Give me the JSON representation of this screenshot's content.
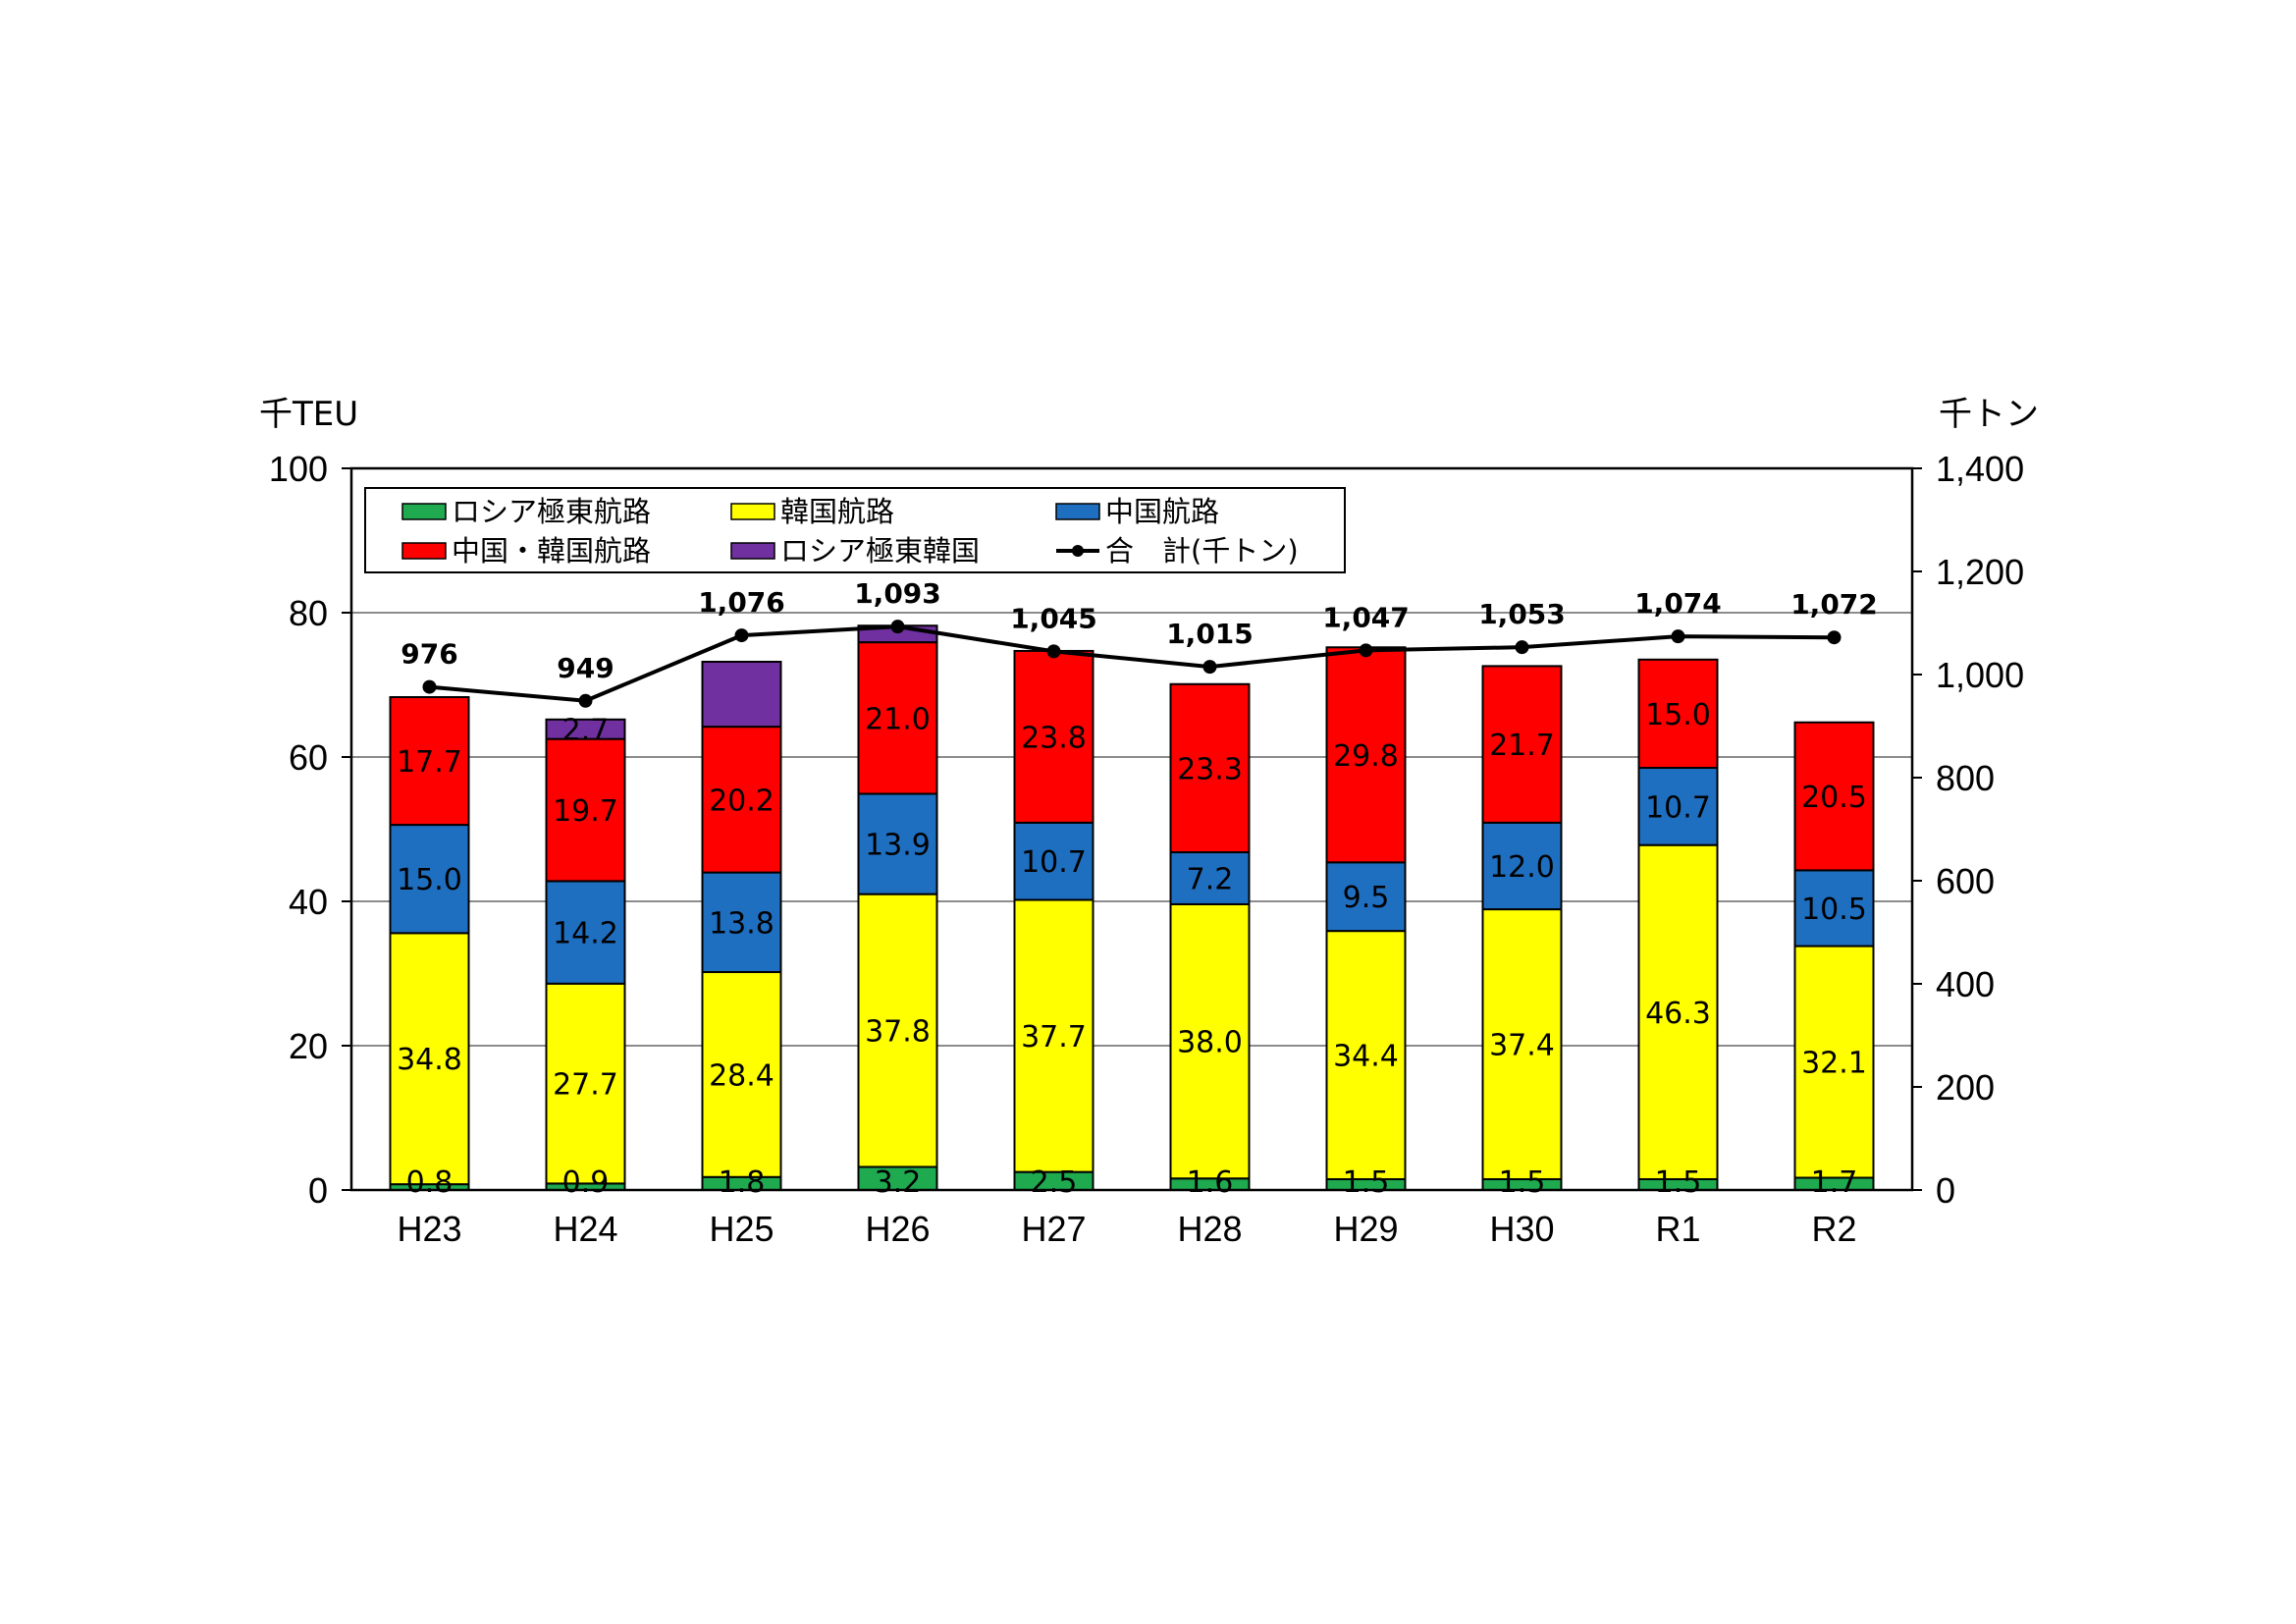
{
  "chart_data": {
    "type": "bar",
    "stacked": true,
    "categories": [
      "H23",
      "H24",
      "H25",
      "H26",
      "H27",
      "H28",
      "H29",
      "H30",
      "R1",
      "R2"
    ],
    "y_unit_left": "千TEU",
    "y_unit_right": "千トン",
    "ylim_left": [
      0,
      100
    ],
    "ylim_right": [
      0,
      1400
    ],
    "yticks_left": [
      "0",
      "20",
      "40",
      "60",
      "80",
      "100"
    ],
    "yticks_right": [
      "0",
      "200",
      "400",
      "600",
      "800",
      "1,000",
      "1,200",
      "1,400"
    ],
    "grid": true,
    "legend_position": "top-left inside",
    "series": [
      {
        "name": "ロシア極東航路",
        "color": "#1faa50",
        "values": [
          0.8,
          0.9,
          1.8,
          3.2,
          2.5,
          1.6,
          1.5,
          1.5,
          1.5,
          1.7
        ],
        "labels": [
          "0.8",
          "0.9",
          "1.8",
          "3.2",
          "2.5",
          "1.6",
          "1.5",
          "1.5",
          "1.5",
          "1.7"
        ]
      },
      {
        "name": "韓国航路",
        "color": "#ffff00",
        "values": [
          34.8,
          27.7,
          28.4,
          37.8,
          37.7,
          38.0,
          34.4,
          37.4,
          46.3,
          32.1
        ],
        "labels": [
          "34.8",
          "27.7",
          "28.4",
          "37.8",
          "37.7",
          "38.0",
          "34.4",
          "37.4",
          "46.3",
          "32.1"
        ]
      },
      {
        "name": "中国航路",
        "color": "#1f6fc1",
        "values": [
          15.0,
          14.2,
          13.8,
          13.9,
          10.7,
          7.2,
          9.5,
          12.0,
          10.7,
          10.5
        ],
        "labels": [
          "15.0",
          "14.2",
          "13.8",
          "13.9",
          "10.7",
          "7.2",
          "9.5",
          "12.0",
          "10.7",
          "10.5"
        ]
      },
      {
        "name": "中国・韓国航路",
        "color": "#ff0000",
        "values": [
          17.7,
          19.7,
          20.2,
          21.0,
          23.8,
          23.3,
          29.8,
          21.7,
          15.0,
          20.5
        ],
        "labels": [
          "17.7",
          "19.7",
          "20.2",
          "21.0",
          "23.8",
          "23.3",
          "29.8",
          "21.7",
          "15.0",
          "20.5"
        ]
      },
      {
        "name": "ロシア極東韓国",
        "color": "#7030a0",
        "values": [
          0,
          2.7,
          9.0,
          2.3,
          0,
          0,
          0,
          0,
          0,
          0
        ],
        "labels": [
          "",
          "2.7",
          "",
          "",
          "",
          "",
          "",
          "",
          "",
          ""
        ]
      }
    ],
    "line_series": {
      "name": "合　計(千トン)",
      "axis": "right",
      "color": "#000000",
      "values": [
        976,
        949,
        1076,
        1093,
        1045,
        1015,
        1047,
        1053,
        1074,
        1072
      ],
      "labels": [
        "976",
        "949",
        "1,076",
        "1,093",
        "1,045",
        "1,015",
        "1,047",
        "1,053",
        "1,074",
        "1,072"
      ]
    }
  }
}
